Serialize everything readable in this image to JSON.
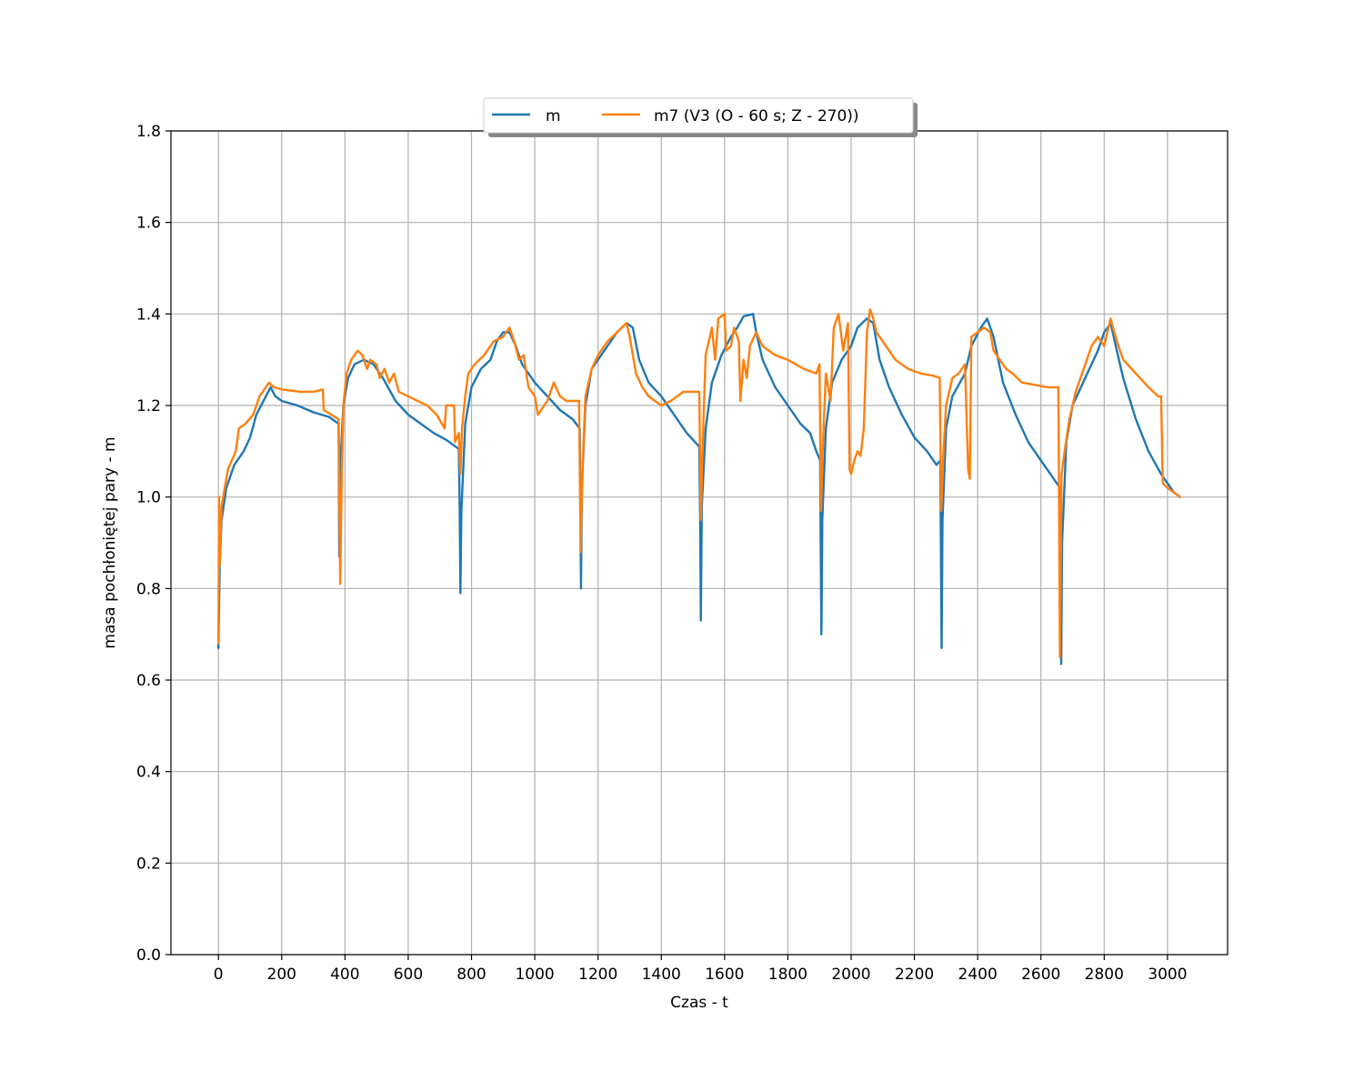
{
  "chart_data": {
    "type": "line",
    "xlabel": "Czas - t",
    "ylabel": "masa pochłoniętej pary - m",
    "xlim": [
      -150,
      3190
    ],
    "ylim": [
      0.0,
      1.8
    ],
    "xticks": [
      0,
      200,
      400,
      600,
      800,
      1000,
      1200,
      1400,
      1600,
      1800,
      2000,
      2200,
      2400,
      2600,
      2800,
      3000
    ],
    "yticks": [
      0.0,
      0.2,
      0.4,
      0.6,
      0.8,
      1.0,
      1.2,
      1.4,
      1.6,
      1.8
    ],
    "ytick_labels": [
      "0.0",
      "0.2",
      "0.4",
      "0.6",
      "0.8",
      "1.0",
      "1.2",
      "1.4",
      "1.6",
      "1.8"
    ],
    "grid": true,
    "legend": "top-center",
    "series": [
      {
        "name": "m",
        "color": "#1f77b4",
        "points": [
          [
            0,
            0.67
          ],
          [
            4,
            0.85
          ],
          [
            10,
            0.95
          ],
          [
            25,
            1.02
          ],
          [
            50,
            1.07
          ],
          [
            80,
            1.1
          ],
          [
            100,
            1.13
          ],
          [
            120,
            1.18
          ],
          [
            150,
            1.22
          ],
          [
            165,
            1.24
          ],
          [
            180,
            1.22
          ],
          [
            200,
            1.21
          ],
          [
            250,
            1.2
          ],
          [
            300,
            1.185
          ],
          [
            350,
            1.175
          ],
          [
            380,
            1.16
          ],
          [
            382,
            0.87
          ],
          [
            384,
            1.05
          ],
          [
            395,
            1.2
          ],
          [
            410,
            1.26
          ],
          [
            430,
            1.29
          ],
          [
            460,
            1.3
          ],
          [
            490,
            1.29
          ],
          [
            520,
            1.26
          ],
          [
            560,
            1.21
          ],
          [
            600,
            1.18
          ],
          [
            640,
            1.16
          ],
          [
            680,
            1.14
          ],
          [
            720,
            1.125
          ],
          [
            760,
            1.105
          ],
          [
            763,
            0.96
          ],
          [
            765,
            0.79
          ],
          [
            768,
            0.97
          ],
          [
            780,
            1.16
          ],
          [
            800,
            1.24
          ],
          [
            830,
            1.28
          ],
          [
            860,
            1.3
          ],
          [
            880,
            1.34
          ],
          [
            900,
            1.36
          ],
          [
            920,
            1.36
          ],
          [
            940,
            1.33
          ],
          [
            960,
            1.29
          ],
          [
            1000,
            1.25
          ],
          [
            1040,
            1.22
          ],
          [
            1080,
            1.19
          ],
          [
            1120,
            1.17
          ],
          [
            1142,
            1.15
          ],
          [
            1144,
            0.99
          ],
          [
            1146,
            0.8
          ],
          [
            1149,
            1.02
          ],
          [
            1160,
            1.2
          ],
          [
            1180,
            1.28
          ],
          [
            1220,
            1.32
          ],
          [
            1260,
            1.36
          ],
          [
            1290,
            1.38
          ],
          [
            1310,
            1.37
          ],
          [
            1330,
            1.3
          ],
          [
            1360,
            1.25
          ],
          [
            1400,
            1.22
          ],
          [
            1440,
            1.18
          ],
          [
            1480,
            1.14
          ],
          [
            1520,
            1.11
          ],
          [
            1523,
            0.95
          ],
          [
            1525,
            0.73
          ],
          [
            1528,
            0.98
          ],
          [
            1540,
            1.15
          ],
          [
            1560,
            1.25
          ],
          [
            1590,
            1.31
          ],
          [
            1620,
            1.35
          ],
          [
            1640,
            1.37
          ],
          [
            1660,
            1.395
          ],
          [
            1690,
            1.4
          ],
          [
            1700,
            1.36
          ],
          [
            1720,
            1.3
          ],
          [
            1760,
            1.24
          ],
          [
            1800,
            1.2
          ],
          [
            1840,
            1.16
          ],
          [
            1870,
            1.14
          ],
          [
            1890,
            1.1
          ],
          [
            1902,
            1.08
          ],
          [
            1904,
            0.88
          ],
          [
            1906,
            0.7
          ],
          [
            1909,
            0.95
          ],
          [
            1920,
            1.15
          ],
          [
            1940,
            1.25
          ],
          [
            1970,
            1.3
          ],
          [
            2000,
            1.33
          ],
          [
            2020,
            1.37
          ],
          [
            2050,
            1.39
          ],
          [
            2070,
            1.38
          ],
          [
            2090,
            1.3
          ],
          [
            2120,
            1.24
          ],
          [
            2160,
            1.18
          ],
          [
            2200,
            1.13
          ],
          [
            2240,
            1.1
          ],
          [
            2270,
            1.07
          ],
          [
            2282,
            1.08
          ],
          [
            2284,
            0.86
          ],
          [
            2286,
            0.67
          ],
          [
            2289,
            0.95
          ],
          [
            2300,
            1.15
          ],
          [
            2320,
            1.22
          ],
          [
            2360,
            1.27
          ],
          [
            2380,
            1.33
          ],
          [
            2410,
            1.37
          ],
          [
            2430,
            1.39
          ],
          [
            2450,
            1.35
          ],
          [
            2480,
            1.25
          ],
          [
            2520,
            1.18
          ],
          [
            2560,
            1.12
          ],
          [
            2600,
            1.08
          ],
          [
            2640,
            1.04
          ],
          [
            2660,
            1.02
          ],
          [
            2662,
            0.84
          ],
          [
            2664,
            0.635
          ],
          [
            2667,
            0.9
          ],
          [
            2680,
            1.12
          ],
          [
            2700,
            1.2
          ],
          [
            2740,
            1.26
          ],
          [
            2780,
            1.32
          ],
          [
            2800,
            1.36
          ],
          [
            2820,
            1.38
          ],
          [
            2840,
            1.32
          ],
          [
            2860,
            1.26
          ],
          [
            2900,
            1.17
          ],
          [
            2940,
            1.1
          ],
          [
            2980,
            1.05
          ],
          [
            3020,
            1.01
          ],
          [
            3040,
            1.0
          ]
        ]
      },
      {
        "name": "m7 (V3 (O - 60 s; Z - 270))",
        "color": "#ff7f0e",
        "points": [
          [
            0,
            0.68
          ],
          [
            2,
            1.0
          ],
          [
            4,
            0.85
          ],
          [
            10,
            0.98
          ],
          [
            30,
            1.06
          ],
          [
            55,
            1.1
          ],
          [
            65,
            1.15
          ],
          [
            85,
            1.16
          ],
          [
            110,
            1.18
          ],
          [
            130,
            1.22
          ],
          [
            160,
            1.25
          ],
          [
            175,
            1.24
          ],
          [
            200,
            1.235
          ],
          [
            260,
            1.23
          ],
          [
            300,
            1.23
          ],
          [
            330,
            1.235
          ],
          [
            333,
            1.19
          ],
          [
            380,
            1.17
          ],
          [
            385,
            0.81
          ],
          [
            390,
            1.05
          ],
          [
            395,
            1.2
          ],
          [
            405,
            1.27
          ],
          [
            420,
            1.3
          ],
          [
            440,
            1.32
          ],
          [
            455,
            1.31
          ],
          [
            470,
            1.28
          ],
          [
            480,
            1.3
          ],
          [
            500,
            1.29
          ],
          [
            510,
            1.26
          ],
          [
            525,
            1.28
          ],
          [
            540,
            1.25
          ],
          [
            555,
            1.27
          ],
          [
            570,
            1.23
          ],
          [
            600,
            1.22
          ],
          [
            630,
            1.21
          ],
          [
            660,
            1.2
          ],
          [
            690,
            1.18
          ],
          [
            715,
            1.15
          ],
          [
            720,
            1.2
          ],
          [
            745,
            1.2
          ],
          [
            748,
            1.12
          ],
          [
            760,
            1.14
          ],
          [
            765,
            1.05
          ],
          [
            770,
            1.15
          ],
          [
            780,
            1.22
          ],
          [
            790,
            1.27
          ],
          [
            810,
            1.29
          ],
          [
            840,
            1.31
          ],
          [
            870,
            1.34
          ],
          [
            900,
            1.35
          ],
          [
            920,
            1.37
          ],
          [
            935,
            1.34
          ],
          [
            950,
            1.3
          ],
          [
            965,
            1.31
          ],
          [
            980,
            1.24
          ],
          [
            1000,
            1.22
          ],
          [
            1010,
            1.18
          ],
          [
            1040,
            1.21
          ],
          [
            1060,
            1.25
          ],
          [
            1080,
            1.22
          ],
          [
            1100,
            1.21
          ],
          [
            1140,
            1.21
          ],
          [
            1145,
            0.88
          ],
          [
            1150,
            1.05
          ],
          [
            1160,
            1.22
          ],
          [
            1180,
            1.28
          ],
          [
            1200,
            1.31
          ],
          [
            1230,
            1.34
          ],
          [
            1260,
            1.36
          ],
          [
            1290,
            1.38
          ],
          [
            1300,
            1.35
          ],
          [
            1320,
            1.27
          ],
          [
            1340,
            1.24
          ],
          [
            1360,
            1.22
          ],
          [
            1380,
            1.21
          ],
          [
            1400,
            1.2
          ],
          [
            1430,
            1.21
          ],
          [
            1470,
            1.23
          ],
          [
            1500,
            1.23
          ],
          [
            1520,
            1.23
          ],
          [
            1525,
            0.95
          ],
          [
            1530,
            1.1
          ],
          [
            1540,
            1.31
          ],
          [
            1560,
            1.37
          ],
          [
            1570,
            1.3
          ],
          [
            1580,
            1.39
          ],
          [
            1600,
            1.4
          ],
          [
            1605,
            1.32
          ],
          [
            1620,
            1.33
          ],
          [
            1630,
            1.37
          ],
          [
            1645,
            1.34
          ],
          [
            1650,
            1.21
          ],
          [
            1660,
            1.3
          ],
          [
            1670,
            1.26
          ],
          [
            1680,
            1.33
          ],
          [
            1700,
            1.36
          ],
          [
            1720,
            1.33
          ],
          [
            1760,
            1.31
          ],
          [
            1800,
            1.3
          ],
          [
            1850,
            1.28
          ],
          [
            1890,
            1.27
          ],
          [
            1900,
            1.29
          ],
          [
            1905,
            0.97
          ],
          [
            1910,
            1.1
          ],
          [
            1920,
            1.27
          ],
          [
            1935,
            1.21
          ],
          [
            1945,
            1.37
          ],
          [
            1960,
            1.4
          ],
          [
            1975,
            1.32
          ],
          [
            1990,
            1.38
          ],
          [
            1995,
            1.06
          ],
          [
            2000,
            1.05
          ],
          [
            2010,
            1.08
          ],
          [
            2020,
            1.1
          ],
          [
            2030,
            1.09
          ],
          [
            2040,
            1.15
          ],
          [
            2050,
            1.36
          ],
          [
            2060,
            1.41
          ],
          [
            2070,
            1.39
          ],
          [
            2080,
            1.36
          ],
          [
            2100,
            1.34
          ],
          [
            2140,
            1.3
          ],
          [
            2180,
            1.28
          ],
          [
            2220,
            1.27
          ],
          [
            2260,
            1.265
          ],
          [
            2280,
            1.26
          ],
          [
            2285,
            0.97
          ],
          [
            2292,
            1.1
          ],
          [
            2300,
            1.2
          ],
          [
            2320,
            1.26
          ],
          [
            2340,
            1.27
          ],
          [
            2360,
            1.29
          ],
          [
            2370,
            1.06
          ],
          [
            2375,
            1.04
          ],
          [
            2380,
            1.35
          ],
          [
            2400,
            1.36
          ],
          [
            2420,
            1.37
          ],
          [
            2440,
            1.36
          ],
          [
            2450,
            1.32
          ],
          [
            2470,
            1.3
          ],
          [
            2490,
            1.28
          ],
          [
            2510,
            1.27
          ],
          [
            2540,
            1.25
          ],
          [
            2580,
            1.245
          ],
          [
            2620,
            1.24
          ],
          [
            2655,
            1.24
          ],
          [
            2660,
            0.65
          ],
          [
            2665,
            1.05
          ],
          [
            2675,
            1.1
          ],
          [
            2690,
            1.17
          ],
          [
            2710,
            1.23
          ],
          [
            2730,
            1.27
          ],
          [
            2760,
            1.33
          ],
          [
            2780,
            1.35
          ],
          [
            2800,
            1.33
          ],
          [
            2820,
            1.39
          ],
          [
            2840,
            1.34
          ],
          [
            2860,
            1.3
          ],
          [
            2900,
            1.27
          ],
          [
            2940,
            1.24
          ],
          [
            2970,
            1.22
          ],
          [
            2980,
            1.22
          ],
          [
            2985,
            1.03
          ],
          [
            3000,
            1.02
          ],
          [
            3020,
            1.01
          ],
          [
            3040,
            1.0
          ]
        ]
      }
    ]
  }
}
